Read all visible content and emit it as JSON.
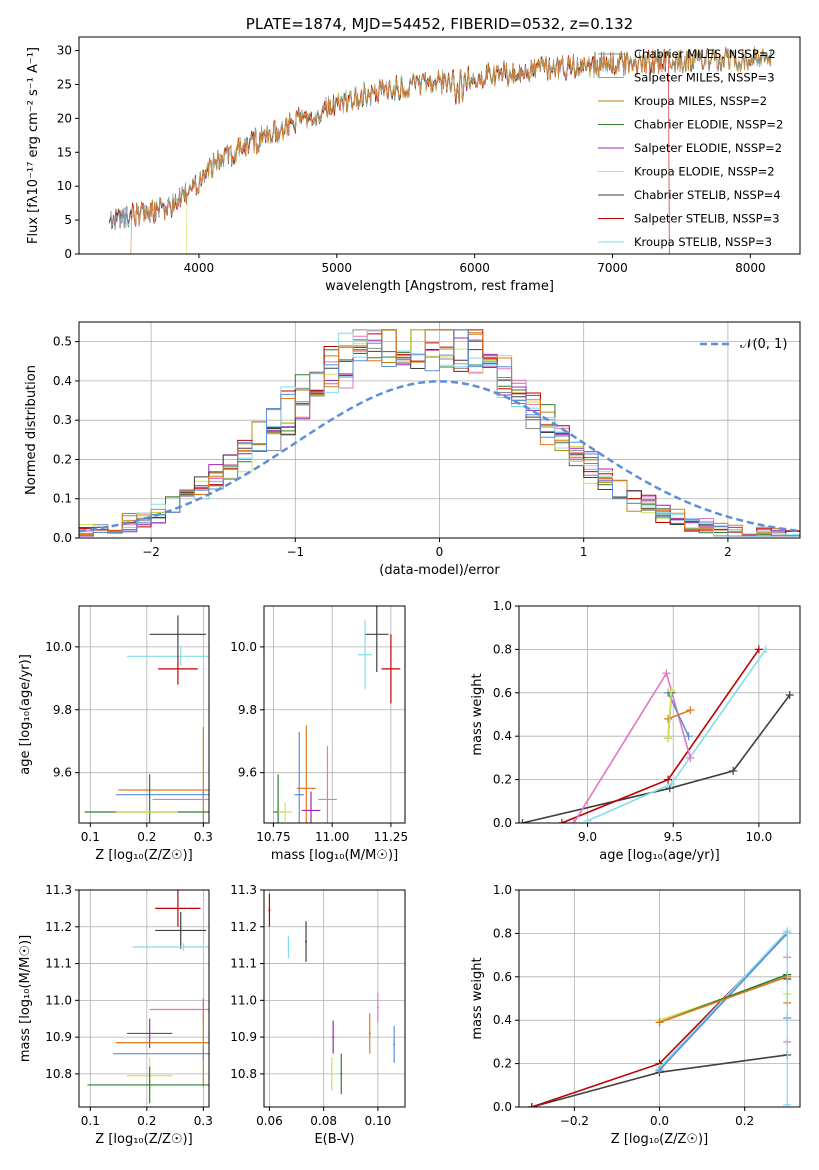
{
  "colors": {
    "chabrier_miles": "#8c8c8c",
    "salpeter_miles": "#e377c2",
    "kroupa_miles": "#b8860b",
    "chabrier_elodie": "#2e7d32",
    "salpeter_elodie": "#9c27b0",
    "kroupa_elodie": "#d4e157",
    "chabrier_stelib": "#404040",
    "salpeter_stelib": "#c00000",
    "kroupa_stelib": "#80deea",
    "orange": "#e07a1f",
    "blue": "#5b8fd9"
  },
  "chart_data": [
    {
      "id": "spectrum",
      "type": "line",
      "title": "PLATE=1874, MJD=54452, FIBERID=0532, z=0.132",
      "xlabel": "wavelength [Angstrom, rest frame]",
      "ylabel": "Flux [fλ10⁻¹⁷ erg cm⁻² s⁻¹ A⁻¹]",
      "xlim": [
        3130,
        8360
      ],
      "ylim": [
        0,
        32
      ],
      "xticks": [
        4000,
        5000,
        6000,
        7000,
        8000
      ],
      "yticks": [
        0,
        5,
        10,
        15,
        20,
        25,
        30
      ],
      "legend_position": "top-right",
      "legend": [
        {
          "label": "Chabrier MILES, NSSP=2",
          "color": "#8c8c8c"
        },
        {
          "label": "Salpeter MILES, NSSP=3",
          "color": "#e377c2"
        },
        {
          "label": "Kroupa MILES, NSSP=2",
          "color": "#b8860b"
        },
        {
          "label": "Chabrier ELODIE, NSSP=2",
          "color": "#2e7d32"
        },
        {
          "label": "Salpeter ELODIE, NSSP=2",
          "color": "#9c27b0"
        },
        {
          "label": "Kroupa ELODIE, NSSP=2",
          "color": "#d4e157"
        },
        {
          "label": "Chabrier STELIB, NSSP=4",
          "color": "#404040"
        },
        {
          "label": "Salpeter STELIB, NSSP=3",
          "color": "#c00000"
        },
        {
          "label": "Kroupa STELIB, NSSP=3",
          "color": "#80deea"
        }
      ],
      "continuum": [
        [
          3350,
          4.8
        ],
        [
          3500,
          5.8
        ],
        [
          3650,
          6.3
        ],
        [
          3800,
          7.0
        ],
        [
          3950,
          9.5
        ],
        [
          4050,
          12.5
        ],
        [
          4200,
          14.5
        ],
        [
          4400,
          16.5
        ],
        [
          4600,
          18.5
        ],
        [
          4800,
          20.5
        ],
        [
          5000,
          22.0
        ],
        [
          5200,
          23.5
        ],
        [
          5400,
          24.3
        ],
        [
          5600,
          25.0
        ],
        [
          5800,
          25.6
        ],
        [
          6000,
          26.2
        ],
        [
          6200,
          26.6
        ],
        [
          6400,
          27.0
        ],
        [
          6600,
          27.4
        ],
        [
          6800,
          27.8
        ],
        [
          7000,
          28.0
        ],
        [
          7200,
          28.2
        ],
        [
          7400,
          28.4
        ],
        [
          7600,
          28.5
        ],
        [
          7800,
          28.6
        ],
        [
          8000,
          28.7
        ],
        [
          8150,
          28.8
        ]
      ],
      "drops": [
        {
          "color": "#e07a1f",
          "x": 3510
        },
        {
          "color": "#d4e157",
          "x": 3910
        },
        {
          "color": "#d4e157",
          "x": 6780
        },
        {
          "color": "#c00000",
          "x": 7410
        }
      ]
    },
    {
      "id": "residuals",
      "type": "line",
      "xlabel": "(data-model)/error",
      "ylabel": "Normed distribution",
      "xlim": [
        -2.5,
        2.5
      ],
      "ylim": [
        0,
        0.55
      ],
      "xticks": [
        -2,
        -1,
        0,
        1,
        2
      ],
      "yticks": [
        0.0,
        0.1,
        0.2,
        0.3,
        0.4,
        0.5
      ],
      "legend_position": "top-right",
      "legend": [
        {
          "label": "𝒩(0, 1)",
          "color": "#5b8fd9",
          "style": "dashed"
        }
      ],
      "gaussian": {
        "mu": 0,
        "sigma": 1
      }
    },
    {
      "id": "age_vs_Z",
      "type": "scatter",
      "xlabel": "Z [log₁₀(Z/Z☉)]",
      "ylabel": "age [log₁₀(age/yr)]",
      "xlim": [
        0.08,
        0.31
      ],
      "ylim": [
        9.44,
        10.13
      ],
      "xticks": [
        0.1,
        0.2,
        0.3
      ],
      "yticks": [
        9.6,
        9.8,
        10.0
      ],
      "points": [
        {
          "color": "#404040",
          "x": 0.255,
          "y": 10.04,
          "xerr": 0.05,
          "yerr": 0.06
        },
        {
          "color": "#80deea",
          "x": 0.26,
          "y": 9.97,
          "xerr": 0.095,
          "yerr": 0.03
        },
        {
          "color": "#c00000",
          "x": 0.255,
          "y": 9.93,
          "xerr": 0.035,
          "yerr": 0.05
        },
        {
          "color": "#e07a1f",
          "x": 0.3,
          "y": 9.545,
          "xerr": 0.15,
          "yerr": 0.2
        },
        {
          "color": "#5b8fd9",
          "x": 0.3,
          "y": 9.53,
          "xerr": 0.155,
          "yerr": 0.01
        },
        {
          "color": "#e377c2",
          "x": 0.3,
          "y": 9.515,
          "xerr": 0.09,
          "yerr": 0.01
        },
        {
          "color": "#2e7d32",
          "x": 0.205,
          "y": 9.475,
          "xerr": 0.115,
          "yerr": 0.12
        },
        {
          "color": "#d4e157",
          "x": 0.2,
          "y": 9.475,
          "xerr": 0.055,
          "yerr": 0.01
        }
      ]
    },
    {
      "id": "age_vs_mass",
      "type": "scatter",
      "xlabel": "mass [log₁₀(M/M☉)]",
      "ylabel": "",
      "xlim": [
        10.71,
        11.31
      ],
      "ylim": [
        9.44,
        10.13
      ],
      "xticks": [
        10.75,
        11.0,
        11.25
      ],
      "yticks": [
        9.6,
        9.8,
        10.0
      ],
      "points": [
        {
          "color": "#404040",
          "x": 11.19,
          "y": 10.04,
          "xerr": 0.05,
          "yerr": 0.12
        },
        {
          "color": "#80deea",
          "x": 11.14,
          "y": 9.975,
          "xerr": 0.03,
          "yerr": 0.11
        },
        {
          "color": "#c00000",
          "x": 11.25,
          "y": 9.93,
          "xerr": 0.04,
          "yerr": 0.11
        },
        {
          "color": "#e07a1f",
          "x": 10.89,
          "y": 9.55,
          "xerr": 0.04,
          "yerr": 0.2
        },
        {
          "color": "#5b8fd9",
          "x": 10.86,
          "y": 9.53,
          "xerr": 0.02,
          "yerr": 0.2
        },
        {
          "color": "#e377c2",
          "x": 10.98,
          "y": 9.515,
          "xerr": 0.04,
          "yerr": 0.17
        },
        {
          "color": "#9c27b0",
          "x": 10.91,
          "y": 9.48,
          "xerr": 0.04,
          "yerr": 0.06
        },
        {
          "color": "#2e7d32",
          "x": 10.77,
          "y": 9.475,
          "xerr": 0.02,
          "yerr": 0.12
        },
        {
          "color": "#d4e157",
          "x": 10.8,
          "y": 9.475,
          "xerr": 0.03,
          "yerr": 0.03
        }
      ]
    },
    {
      "id": "massweight_vs_age",
      "type": "line",
      "xlabel": "age [log₁₀(age/yr)]",
      "ylabel": "mass weight",
      "xlim": [
        8.6,
        10.24
      ],
      "ylim": [
        0,
        1
      ],
      "xticks": [
        9.0,
        9.5,
        10.0
      ],
      "yticks": [
        0.0,
        0.2,
        0.4,
        0.6,
        0.8,
        1.0
      ],
      "series": [
        {
          "color": "#404040",
          "x": [
            8.62,
            9.48,
            9.85,
            10.18
          ],
          "y": [
            0.0,
            0.16,
            0.24,
            0.59
          ]
        },
        {
          "color": "#80deea",
          "x": [
            9.0,
            9.49,
            10.04
          ],
          "y": [
            0.01,
            0.18,
            0.8
          ]
        },
        {
          "color": "#c00000",
          "x": [
            8.85,
            9.47,
            10.0
          ],
          "y": [
            0.0,
            0.2,
            0.8
          ]
        },
        {
          "color": "#e377c2",
          "x": [
            8.92,
            9.46,
            9.6
          ],
          "y": [
            0.0,
            0.69,
            0.3
          ]
        },
        {
          "color": "#5b8fd9",
          "x": [
            9.47,
            9.59
          ],
          "y": [
            0.6,
            0.4
          ]
        },
        {
          "color": "#e07a1f",
          "x": [
            9.47,
            9.6
          ],
          "y": [
            0.48,
            0.52
          ]
        },
        {
          "color": "#2e7d32",
          "x": [
            9.47,
            9.49
          ],
          "y": [
            0.39,
            0.6
          ]
        },
        {
          "color": "#d4e157",
          "x": [
            9.47,
            9.49
          ],
          "y": [
            0.39,
            0.61
          ]
        }
      ]
    },
    {
      "id": "mass_vs_Z",
      "type": "scatter",
      "xlabel": "Z [log₁₀(Z/Z☉)]",
      "ylabel": "mass [log₁₀(M/M☉)]",
      "xlim": [
        0.08,
        0.31
      ],
      "ylim": [
        10.71,
        11.3
      ],
      "xticks": [
        0.1,
        0.2,
        0.3
      ],
      "yticks": [
        10.8,
        10.9,
        11.0,
        11.1,
        11.2,
        11.3
      ],
      "points": [
        {
          "color": "#c00000",
          "x": 0.255,
          "y": 11.25,
          "xerr": 0.04,
          "yerr": 0.05
        },
        {
          "color": "#404040",
          "x": 0.26,
          "y": 11.19,
          "xerr": 0.045,
          "yerr": 0.05
        },
        {
          "color": "#80deea",
          "x": 0.265,
          "y": 11.145,
          "xerr": 0.09,
          "yerr": 0.01
        },
        {
          "color": "#e377c2",
          "x": 0.3,
          "y": 10.975,
          "xerr": 0.095,
          "yerr": 0.03
        },
        {
          "color": "#9c27b0",
          "x": 0.205,
          "y": 10.91,
          "xerr": 0.04,
          "yerr": 0.04
        },
        {
          "color": "#e07a1f",
          "x": 0.3,
          "y": 10.885,
          "xerr": 0.155,
          "yerr": 0.12
        },
        {
          "color": "#5b8fd9",
          "x": 0.3,
          "y": 10.855,
          "xerr": 0.16,
          "yerr": 0.02
        },
        {
          "color": "#d4e157",
          "x": 0.205,
          "y": 10.795,
          "xerr": 0.04,
          "yerr": 0.05
        },
        {
          "color": "#2e7d32",
          "x": 0.205,
          "y": 10.77,
          "xerr": 0.11,
          "yerr": 0.05
        }
      ]
    },
    {
      "id": "mass_vs_EBV",
      "type": "scatter",
      "xlabel": "E(B-V)",
      "ylabel": "",
      "xlim": [
        0.058,
        0.11
      ],
      "ylim": [
        10.71,
        11.3
      ],
      "xticks": [
        0.06,
        0.08,
        0.1
      ],
      "yticks": [
        10.8,
        10.9,
        11.0,
        11.1,
        11.2,
        11.3
      ],
      "points": [
        {
          "color": "#c00000",
          "x": 0.06,
          "y": 11.245,
          "xerr": 0,
          "yerr": 0.045
        },
        {
          "color": "#80deea",
          "x": 0.067,
          "y": 11.145,
          "xerr": 0,
          "yerr": 0.03
        },
        {
          "color": "#404040",
          "x": 0.0735,
          "y": 11.16,
          "xerr": 0,
          "yerr": 0.055
        },
        {
          "color": "#e377c2",
          "x": 0.1,
          "y": 10.98,
          "xerr": 0,
          "yerr": 0.04
        },
        {
          "color": "#9c27b0",
          "x": 0.0835,
          "y": 10.9,
          "xerr": 0,
          "yerr": 0.045
        },
        {
          "color": "#e07a1f",
          "x": 0.097,
          "y": 10.91,
          "xerr": 0,
          "yerr": 0.055
        },
        {
          "color": "#5b8fd9",
          "x": 0.106,
          "y": 10.88,
          "xerr": 0,
          "yerr": 0.05
        },
        {
          "color": "#d4e157",
          "x": 0.083,
          "y": 10.8,
          "xerr": 0,
          "yerr": 0.045
        },
        {
          "color": "#2e7d32",
          "x": 0.0865,
          "y": 10.8,
          "xerr": 0,
          "yerr": 0.055
        }
      ]
    },
    {
      "id": "massweight_vs_Z",
      "type": "line",
      "xlabel": "Z [log₁₀(Z/Z☉)]",
      "ylabel": "mass weight",
      "xlim": [
        -0.33,
        0.33
      ],
      "ylim": [
        0,
        1
      ],
      "xticks": [
        -0.2,
        0.0,
        0.2
      ],
      "yticks": [
        0.0,
        0.2,
        0.4,
        0.6,
        0.8,
        1.0
      ],
      "series": [
        {
          "color": "#404040",
          "x": [
            -0.3,
            0.0,
            0.3
          ],
          "y": [
            0.0,
            0.16,
            0.24
          ]
        },
        {
          "color": "#c00000",
          "x": [
            -0.3,
            0.0,
            0.3
          ],
          "y": [
            0.0,
            0.2,
            0.8
          ]
        },
        {
          "color": "#80deea",
          "x": [
            0.0,
            0.3
          ],
          "y": [
            0.18,
            0.81
          ]
        },
        {
          "color": "#5b8fd9",
          "x": [
            0.0,
            0.3
          ],
          "y": [
            0.17,
            0.8
          ]
        },
        {
          "color": "#d4e157",
          "x": [
            0.0,
            0.3
          ],
          "y": [
            0.4,
            0.6
          ]
        },
        {
          "color": "#2e7d32",
          "x": [
            0.0,
            0.3
          ],
          "y": [
            0.39,
            0.61
          ]
        },
        {
          "color": "#e07a1f",
          "x": [
            0.0,
            0.3
          ],
          "y": [
            0.39,
            0.6
          ]
        }
      ],
      "z_markers": [
        0.01,
        0.3,
        0.41,
        0.48,
        0.52,
        0.59,
        0.61,
        0.69,
        0.8
      ]
    }
  ]
}
